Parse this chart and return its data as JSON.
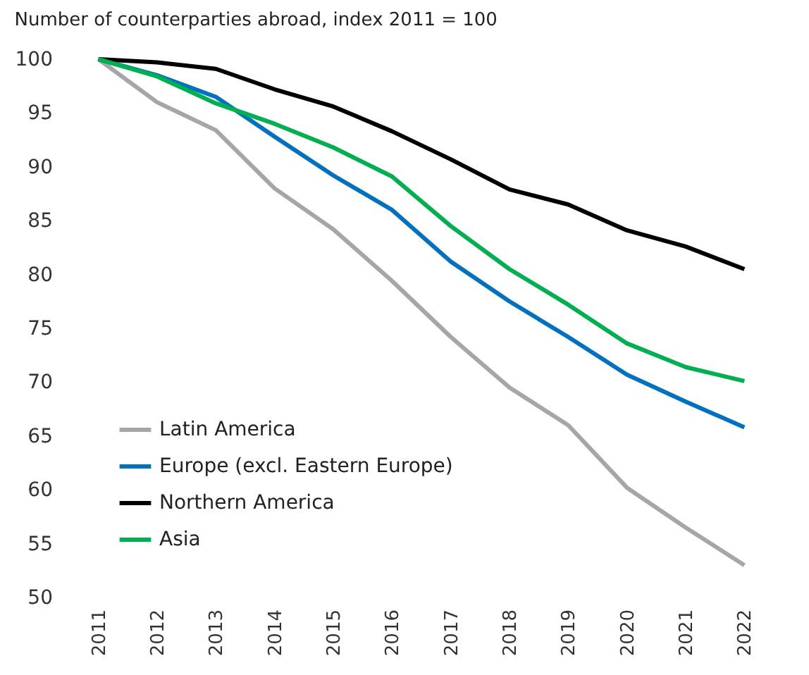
{
  "chart_data": {
    "type": "line",
    "title": "Number of counterparties abroad, index 2011 = 100",
    "categories": [
      "2011",
      "2012",
      "2013",
      "2014",
      "2015",
      "2016",
      "2017",
      "2018",
      "2019",
      "2020",
      "2021",
      "2022"
    ],
    "ylim": [
      50,
      100
    ],
    "yticks": [
      50,
      55,
      60,
      65,
      70,
      75,
      80,
      85,
      90,
      95,
      100
    ],
    "grid": false,
    "legend": "bottom left",
    "marker": "none",
    "line_style": "solid",
    "series": [
      {
        "name": "Latin America",
        "color": "#a6a6a6",
        "values": [
          100,
          96,
          93.4,
          88,
          84.2,
          79.4,
          74.2,
          69.5,
          66,
          60.2,
          56.5,
          53
        ]
      },
      {
        "name": "Europe (excl. Eastern Europe)",
        "color": "#0070c0",
        "values": [
          100,
          98.5,
          96.5,
          92.8,
          89.2,
          86,
          81.2,
          77.5,
          74.2,
          70.7,
          68.2,
          65.8
        ]
      },
      {
        "name": "Northern America",
        "color": "#000000",
        "values": [
          100,
          99.7,
          99.1,
          97.2,
          95.6,
          93.3,
          90.7,
          87.9,
          86.5,
          84.1,
          82.6,
          80.5
        ]
      },
      {
        "name": "Asia",
        "color": "#00b050",
        "values": [
          100,
          98.4,
          95.9,
          94,
          91.8,
          89.1,
          84.5,
          80.5,
          77.2,
          73.6,
          71.4,
          70.1
        ]
      }
    ]
  }
}
